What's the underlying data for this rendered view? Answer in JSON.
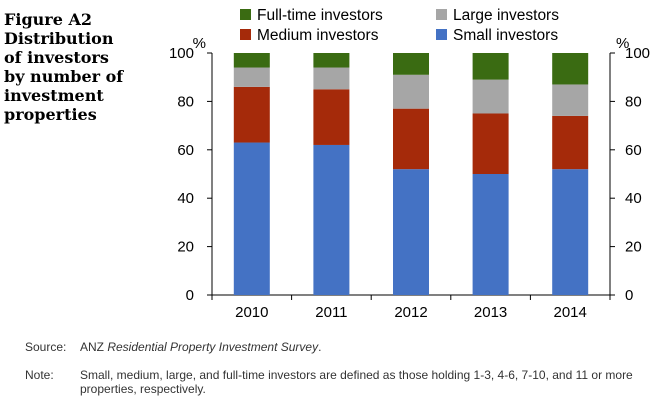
{
  "figure": {
    "title": "Figure A2\nDistribution\nof investors\nby number of\ninvestment\nproperties"
  },
  "footer": {
    "source_label": "Source:",
    "source_prefix": "ANZ ",
    "source_italic": "Residential Property Investment Survey",
    "source_suffix": ".",
    "note_label": "Note:",
    "note_text": "Small, medium, large, and full-time investors are defined as those holding 1-3, 4-6, 7-10, and 11 or more properties, respectively."
  },
  "chart_data": {
    "type": "bar",
    "stacked": true,
    "categories": [
      "2010",
      "2011",
      "2012",
      "2013",
      "2014"
    ],
    "series": [
      {
        "name": "Small investors",
        "color": "#4472C4",
        "values": [
          63,
          62,
          52,
          50,
          52
        ]
      },
      {
        "name": "Medium investors",
        "color": "#A52A0A",
        "values": [
          23,
          23,
          25,
          25,
          22
        ]
      },
      {
        "name": "Large investors",
        "color": "#A6A6A6",
        "values": [
          8,
          9,
          14,
          14,
          13
        ]
      },
      {
        "name": "Full-time investors",
        "color": "#3A6B12",
        "values": [
          6,
          6,
          9,
          11,
          13
        ]
      }
    ],
    "legend_order": [
      "Full-time investors",
      "Large investors",
      "Medium investors",
      "Small investors"
    ],
    "ylim": [
      0,
      100
    ],
    "yticks": [
      0,
      20,
      40,
      60,
      80,
      100
    ],
    "ylabel_left": "%",
    "ylabel_right": "%",
    "grid": false,
    "legend_position": "top"
  }
}
